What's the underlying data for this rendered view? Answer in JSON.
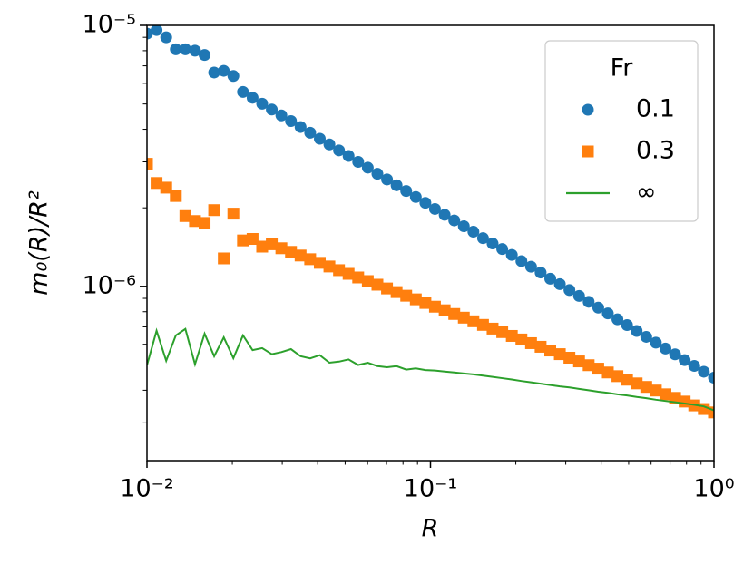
{
  "chart_data": {
    "type": "scatter",
    "xlabel": "R",
    "ylabel": "m₀(R)/R²",
    "xscale": "log",
    "yscale": "log",
    "xlim": [
      0.01,
      1
    ],
    "ylim": [
      2.15e-07,
      1e-05
    ],
    "xticks": [
      {
        "value": 0.01,
        "label": "10⁻²"
      },
      {
        "value": 0.1,
        "label": "10⁻¹"
      },
      {
        "value": 1,
        "label": "10⁰"
      }
    ],
    "yticks": [
      {
        "value": 1e-06,
        "label": "10⁻⁶"
      },
      {
        "value": 1e-05,
        "label": "10⁻⁵"
      }
    ],
    "xminorticks": [
      0.02,
      0.03,
      0.04,
      0.05,
      0.06,
      0.07,
      0.08,
      0.09,
      0.2,
      0.3,
      0.4,
      0.5,
      0.6,
      0.7,
      0.8,
      0.9
    ],
    "yminorticks": [
      3e-07,
      4e-07,
      5e-07,
      6e-07,
      7e-07,
      8e-07,
      9e-07,
      2e-06,
      3e-06,
      4e-06,
      5e-06,
      6e-06,
      7e-06,
      8e-06,
      9e-06
    ],
    "legend_title": "Fr",
    "legend": "upper right",
    "x": [
      0.01,
      0.01081,
      0.01169,
      0.01264,
      0.01366,
      0.01477,
      0.01597,
      0.01726,
      0.01866,
      0.02017,
      0.02181,
      0.02358,
      0.02549,
      0.02756,
      0.02979,
      0.03221,
      0.03482,
      0.03764,
      0.0407,
      0.044,
      0.04757,
      0.05142,
      0.05559,
      0.0601,
      0.06498,
      0.07025,
      0.07594,
      0.0821,
      0.08876,
      0.09596,
      0.1037,
      0.1122,
      0.1213,
      0.1311,
      0.1417,
      0.1532,
      0.1656,
      0.1791,
      0.1936,
      0.2093,
      0.2263,
      0.2446,
      0.2645,
      0.2859,
      0.3091,
      0.3342,
      0.3613,
      0.3906,
      0.4222,
      0.4565,
      0.4935,
      0.5335,
      0.5768,
      0.6236,
      0.6741,
      0.7288,
      0.7879,
      0.8518,
      0.9209,
      1.0
    ],
    "series": [
      {
        "name": "0.1",
        "color": "#1f77b4",
        "marker": "circle",
        "values": [
          9.3e-06,
          9.6e-06,
          9e-06,
          8.1e-06,
          8.1e-06,
          8e-06,
          7.7e-06,
          6.6e-06,
          6.7e-06,
          6.4e-06,
          5.56e-06,
          5.28e-06,
          5.01e-06,
          4.76e-06,
          4.52e-06,
          4.3e-06,
          4.08e-06,
          3.88e-06,
          3.68e-06,
          3.5e-06,
          3.32e-06,
          3.16e-06,
          3e-06,
          2.85e-06,
          2.7e-06,
          2.57e-06,
          2.44e-06,
          2.32e-06,
          2.2e-06,
          2.09e-06,
          1.98e-06,
          1.88e-06,
          1.79e-06,
          1.7e-06,
          1.62e-06,
          1.53e-06,
          1.46e-06,
          1.39e-06,
          1.32e-06,
          1.25e-06,
          1.19e-06,
          1.13e-06,
          1.07e-06,
          1.02e-06,
          9.68e-07,
          9.19e-07,
          8.73e-07,
          8.29e-07,
          7.88e-07,
          7.48e-07,
          7.11e-07,
          6.75e-07,
          6.41e-07,
          6.09e-07,
          5.78e-07,
          5.49e-07,
          5.22e-07,
          4.96e-07,
          4.71e-07,
          4.47e-07
        ]
      },
      {
        "name": "0.3",
        "color": "#ff7f0e",
        "marker": "square",
        "values": [
          2.95e-06,
          2.49e-06,
          2.39e-06,
          2.22e-06,
          1.86e-06,
          1.78e-06,
          1.75e-06,
          1.96e-06,
          1.28e-06,
          1.9e-06,
          1.5e-06,
          1.52e-06,
          1.42e-06,
          1.45e-06,
          1.4e-06,
          1.356e-06,
          1.313e-06,
          1.271e-06,
          1.231e-06,
          1.192e-06,
          1.154e-06,
          1.117e-06,
          1.082e-06,
          1.048e-06,
          1.015e-06,
          9.82e-07,
          9.51e-07,
          9.21e-07,
          8.92e-07,
          8.64e-07,
          8.36e-07,
          8.1e-07,
          7.84e-07,
          7.59e-07,
          7.35e-07,
          7.12e-07,
          6.89e-07,
          6.68e-07,
          6.46e-07,
          6.26e-07,
          6.06e-07,
          5.87e-07,
          5.68e-07,
          5.5e-07,
          5.33e-07,
          5.16e-07,
          4.99e-07,
          4.84e-07,
          4.68e-07,
          4.53e-07,
          4.39e-07,
          4.25e-07,
          4.12e-07,
          3.99e-07,
          3.86e-07,
          3.74e-07,
          3.62e-07,
          3.5e-07,
          3.39e-07,
          3.29e-07
        ]
      },
      {
        "name": "∞",
        "color": "#2ca02c",
        "marker": "line",
        "values": [
          4.99e-07,
          6.76e-07,
          5.19e-07,
          6.49e-07,
          6.87e-07,
          5.03e-07,
          6.59e-07,
          5.4e-07,
          6.38e-07,
          5.31e-07,
          6.49e-07,
          5.7e-07,
          5.8e-07,
          5.5e-07,
          5.6e-07,
          5.75e-07,
          5.4e-07,
          5.3e-07,
          5.45e-07,
          5.1e-07,
          5.15e-07,
          5.25e-07,
          5e-07,
          5.1e-07,
          4.95e-07,
          4.9e-07,
          4.95e-07,
          4.8e-07,
          4.85e-07,
          4.78e-07,
          4.76e-07,
          4.72e-07,
          4.68e-07,
          4.64e-07,
          4.6e-07,
          4.55e-07,
          4.5e-07,
          4.45e-07,
          4.4e-07,
          4.34e-07,
          4.29e-07,
          4.24e-07,
          4.19e-07,
          4.14e-07,
          4.1e-07,
          4.05e-07,
          4e-07,
          3.95e-07,
          3.91e-07,
          3.86e-07,
          3.82e-07,
          3.77e-07,
          3.73e-07,
          3.68e-07,
          3.64e-07,
          3.6e-07,
          3.56e-07,
          3.52e-07,
          3.47e-07,
          3.35e-07
        ]
      }
    ]
  }
}
